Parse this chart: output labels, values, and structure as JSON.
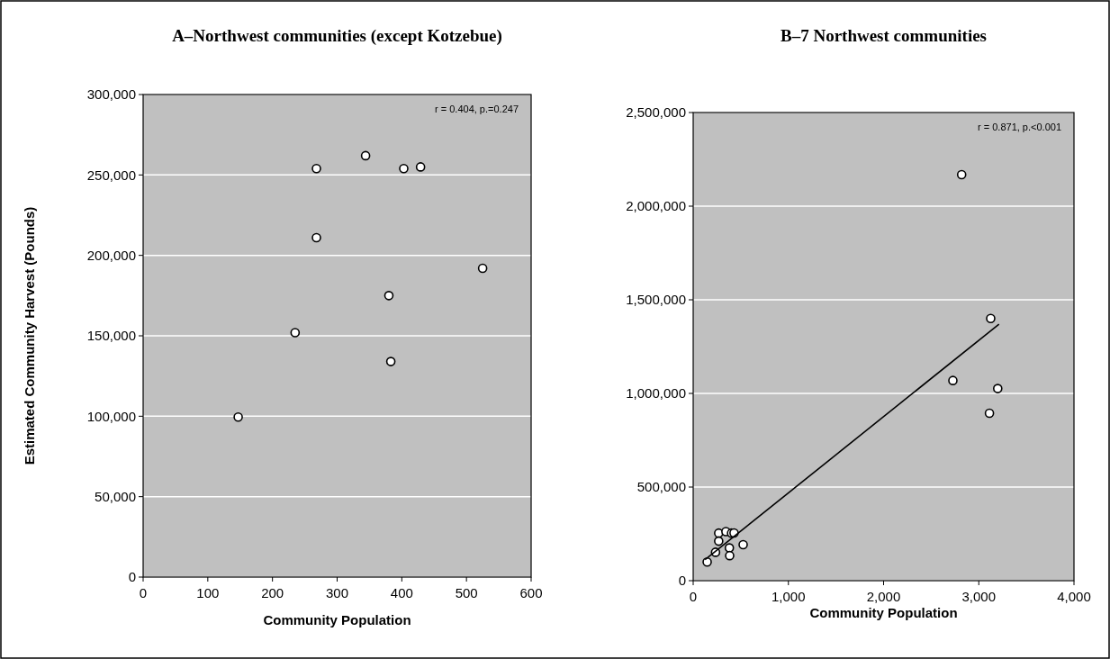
{
  "chart_data": [
    {
      "type": "scatter",
      "title": "A–Northwest communities (except Kotzebue)",
      "xlabel": "Community Population",
      "ylabel": "Estimated Community Harvest (Pounds)",
      "annotations": [
        "r = 0.404, p.=0.247"
      ],
      "series": [
        {
          "color": "#ffffff",
          "x": [
            268,
            344,
            403,
            429,
            268,
            525,
            380,
            235,
            383,
            147
          ],
          "values": [
            254000,
            262000,
            254000,
            255000,
            211000,
            192000,
            175000,
            152000,
            134000,
            99500
          ]
        }
      ],
      "xlim": [
        0,
        600
      ],
      "xticks": [
        0,
        100,
        200,
        300,
        400,
        500,
        600
      ],
      "ylim": [
        0,
        300000
      ],
      "yticks": [
        0,
        {
          "value": 50000,
          "label": "50,000"
        },
        {
          "value": 100000,
          "label": "100,000"
        },
        {
          "value": 150000,
          "label": "150,000"
        },
        {
          "value": 200000,
          "label": "200,000"
        },
        {
          "value": 250000,
          "label": "250,000"
        },
        {
          "value": 300000,
          "label": "300,000"
        }
      ],
      "grid": "y",
      "marker": "circle"
    },
    {
      "type": "scatter",
      "title": "B–7 Northwest communities",
      "xlabel": "Community Population",
      "annotations": [
        "r = 0.871, p.<0.001"
      ],
      "series": [
        {
          "color": "#ffffff",
          "x": [
            268,
            344,
            403,
            429,
            268,
            525,
            380,
            235,
            383,
            147,
            2820,
            3125,
            2728,
            3199,
            3112
          ],
          "values": [
            254000,
            262000,
            254000,
            255000,
            211000,
            192000,
            175000,
            152000,
            134000,
            100000,
            2168000,
            1400000,
            1069000,
            1026000,
            894000
          ]
        },
        {
          "type": "line",
          "color": "#000000",
          "marker": "none",
          "x": [
            125,
            3212
          ],
          "values": [
            112000,
            1370000
          ]
        }
      ],
      "xlim": [
        0,
        4000
      ],
      "xticks": [
        0,
        {
          "value": 1000,
          "label": "1,000"
        },
        {
          "value": 2000,
          "label": "2,000"
        },
        {
          "value": 3000,
          "label": "3,000"
        },
        {
          "value": 4000,
          "label": "4,000"
        }
      ],
      "ylim": [
        0,
        2500000
      ],
      "yticks": [
        0,
        {
          "value": 500000,
          "label": "500,000"
        },
        {
          "value": 1000000,
          "label": "1,000,000"
        },
        {
          "value": 1500000,
          "label": "1,500,000"
        },
        {
          "value": 2000000,
          "label": "2,000,000"
        },
        {
          "value": 2500000,
          "label": "2,500,000"
        }
      ],
      "grid": "y",
      "marker": "circle"
    }
  ]
}
